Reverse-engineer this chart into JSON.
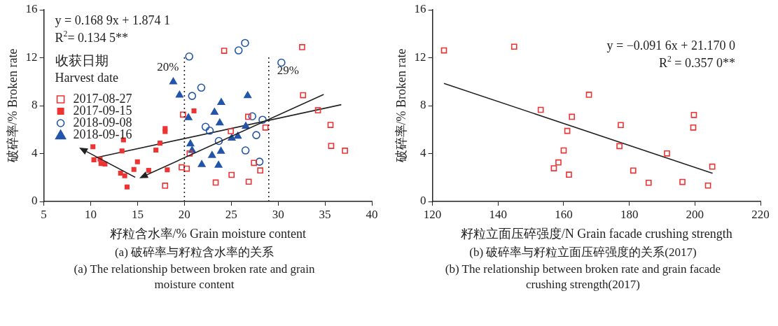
{
  "chart_data": [
    {
      "type": "scatter",
      "title": "(a) 破碎率与籽粒含水率的关系",
      "subtitle": "(a) The relationship between broken rate and grain moisture content",
      "xlabel": "籽粒含水率/% Grain moisture content",
      "ylabel": "破碎率/% Broken rate",
      "legend_title": "收获日期\nHarvest date",
      "legend": "left",
      "grid": false,
      "annotations": [
        "y = 0.168 9x + 1.874 1",
        "R$^{2}$= 0.134 5**"
      ],
      "xlim": [
        5,
        40
      ],
      "xticks": [
        5,
        10,
        15,
        20,
        25,
        30,
        35,
        40
      ],
      "ylim": [
        0,
        16
      ],
      "yticks": [
        0,
        4,
        8,
        12,
        16
      ],
      "ref_lines": [
        {
          "axis": "x",
          "value": 20,
          "label": "20%",
          "line_style": "dotted"
        },
        {
          "axis": "x",
          "value": 29,
          "label": "29%",
          "line_style": "dotted"
        }
      ],
      "series": [
        {
          "name": "2017-08-27",
          "marker": "square",
          "color": "#ee3333",
          "x": [
            19.85,
            20.56,
            19.71,
            20.25,
            17.94,
            23.34,
            24.24,
            32.56,
            32.66,
            34.25,
            35.59,
            35.66,
            37.13,
            26.8,
            28.65,
            24.95,
            27.42,
            28.09,
            25.03,
            26.86
          ],
          "values": [
            7.25,
            4.01,
            2.85,
            2.74,
            1.32,
            1.58,
            12.58,
            12.88,
            8.87,
            7.61,
            6.39,
            4.64,
            4.24,
            7.07,
            6.17,
            5.87,
            3.22,
            2.59,
            2.22,
            1.65
          ]
        },
        {
          "name": "2017-09-15",
          "marker": "square",
          "color": "#ee3333",
          "x": [
            10.24,
            10.34,
            11.0,
            11.1,
            11.52,
            13.5,
            13.34,
            13.19,
            13.63,
            13.88,
            14.61,
            14.99,
            16.19,
            16.96,
            17.4,
            17.94,
            17.94,
            18.17,
            21.02
          ],
          "values": [
            4.57,
            3.48,
            3.55,
            3.17,
            3.13,
            5.14,
            4.22,
            2.36,
            2.15,
            1.21,
            2.67,
            3.31,
            2.6,
            4.29,
            4.87,
            6.08,
            5.84,
            2.64,
            7.56
          ]
        },
        {
          "name": "2018-09-08",
          "marker": "circle",
          "color": "#2255aa",
          "x": [
            20.51,
            21.8,
            20.82,
            22.26,
            22.7,
            26.47,
            25.78,
            30.35,
            27.24,
            28.34,
            27.67,
            23.67,
            26.52,
            28.01
          ],
          "values": [
            12.1,
            9.5,
            8.81,
            6.23,
            5.91,
            13.23,
            12.61,
            11.59,
            7.11,
            6.82,
            5.54,
            5.05,
            4.26,
            3.32
          ]
        },
        {
          "name": "2018-09-16",
          "marker": "triangle",
          "color": "#2255aa",
          "x": [
            18.81,
            19.48,
            20.43,
            20.64,
            20.82,
            21.85,
            26.75,
            23.93,
            23.21,
            23.77,
            26.55,
            25.7,
            25.05,
            23.9,
            22.95,
            23.64
          ],
          "values": [
            9.99,
            8.88,
            7.0,
            4.8,
            4.26,
            3.08,
            8.83,
            8.27,
            7.44,
            6.56,
            6.28,
            5.45,
            5.28,
            4.19,
            3.84,
            3.02
          ]
        },
        {
          "type": "line",
          "marker": "none",
          "color": "#222222",
          "x": [
            10.34,
            36.74
          ],
          "values": [
            3.62,
            8.08
          ]
        }
      ]
    },
    {
      "type": "scatter",
      "title": "(b) 破碎率与籽粒立面压碎强度的关系(2017)",
      "subtitle": "(b) The relationship between broken rate and grain facade crushing strength(2017)",
      "xlabel": "籽粒立面压碎强度/N Grain facade crushing strength",
      "ylabel": "破碎率/% Broken rate",
      "grid": false,
      "annotations": [
        "y = −0.091 6x + 21.170 0",
        "R$^{2}$ = 0.357 0**"
      ],
      "xlim": [
        120,
        220
      ],
      "xticks": [
        120,
        140,
        160,
        180,
        200,
        220
      ],
      "ylim": [
        0,
        16
      ],
      "yticks": [
        0,
        4,
        8,
        12,
        16
      ],
      "series": [
        {
          "marker": "square",
          "color": "#ee3333",
          "x": [
            123.5,
            144.9,
            153.0,
            162.5,
            161.1,
            160.0,
            158.4,
            157.0,
            161.6,
            167.7,
            177.4,
            177.0,
            181.2,
            185.9,
            191.5,
            196.2,
            199.7,
            199.5,
            204.0,
            205.3
          ],
          "values": [
            12.61,
            12.92,
            7.65,
            7.07,
            5.89,
            4.26,
            3.26,
            2.77,
            2.24,
            8.91,
            6.38,
            4.62,
            2.58,
            1.56,
            4.01,
            1.63,
            7.22,
            6.17,
            1.33,
            2.91
          ]
        },
        {
          "type": "line",
          "marker": "none",
          "color": "#222222",
          "x": [
            123.5,
            205.4
          ],
          "values": [
            9.86,
            2.35
          ]
        }
      ]
    }
  ]
}
